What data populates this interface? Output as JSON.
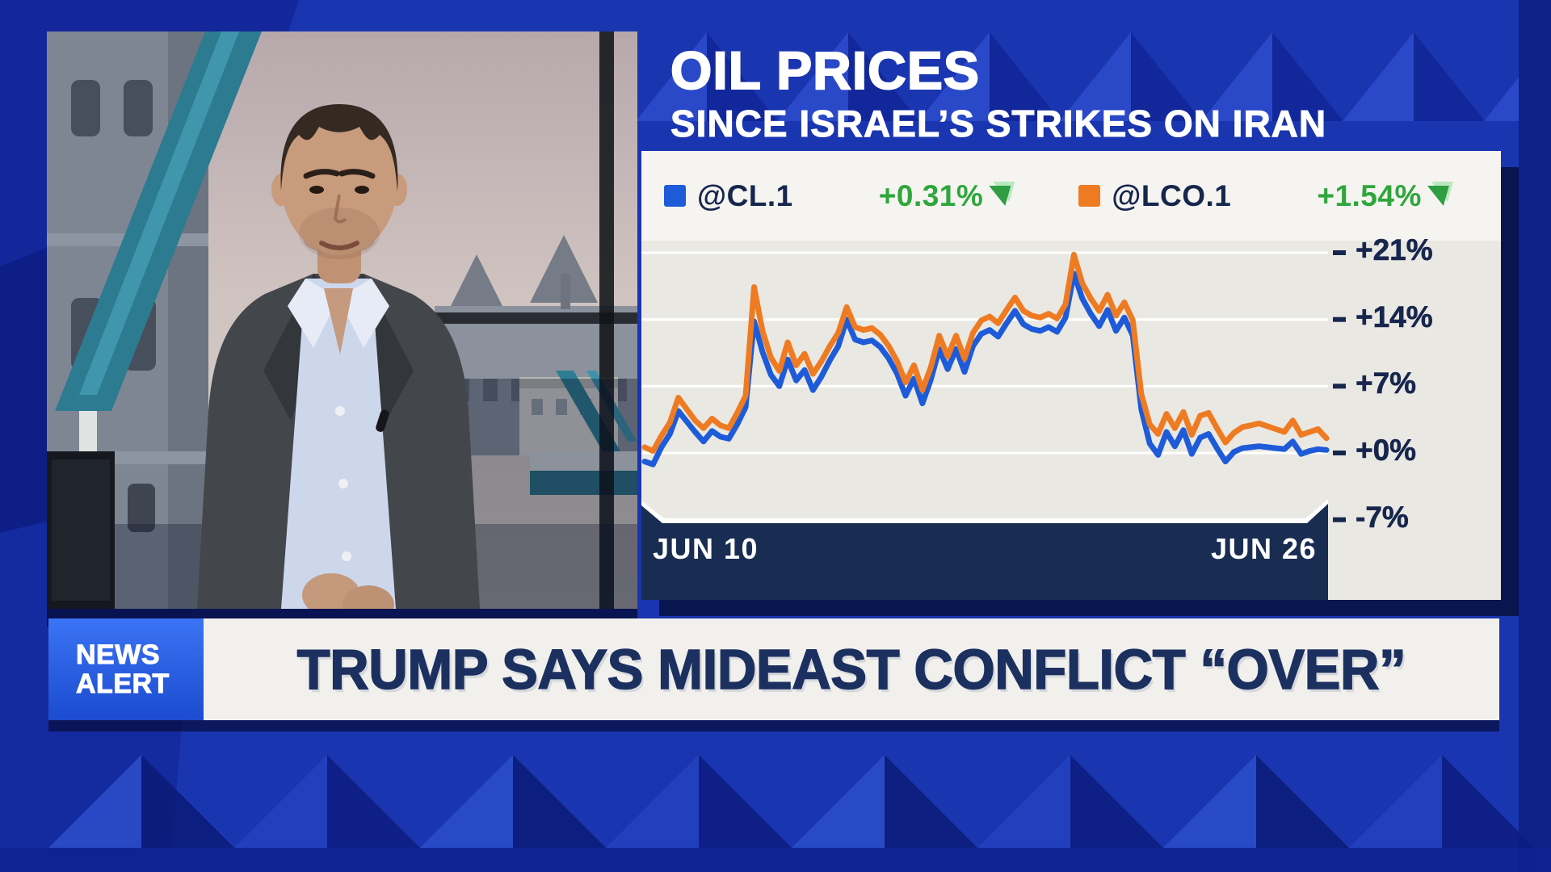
{
  "colors": {
    "navy": "#17264d",
    "band_navy": "#192c52",
    "green": "#2fa63c",
    "green_dark": "#2f9e42",
    "green_light": "#b9e8c2",
    "headline_navy": "#1c3060",
    "alert_blue_top": "#3a74f4",
    "alert_blue_bottom": "#1c4bcf",
    "line_blue": "#1d5bd8",
    "line_orange": "#ee7b22"
  },
  "chart_panel": {
    "title": "OIL PRICES",
    "subtitle": "SINCE ISRAEL’S STRIKES ON IRAN"
  },
  "banner": {
    "badge_line1": "NEWS",
    "badge_line2": "ALERT",
    "headline": "TRUMP SAYS MIDEAST CONFLICT “OVER”"
  },
  "chart_data": {
    "type": "line",
    "title": "OIL PRICES",
    "subtitle": "SINCE ISRAEL’S STRIKES ON IRAN",
    "legend_position": "top",
    "grid": "horizontal white gridlines on light gray",
    "x_axis": {
      "start_label": "JUN 10",
      "end_label": "JUN 26"
    },
    "ylim": [
      -7,
      21
    ],
    "y_ticks": [
      {
        "label": "+21%",
        "value": 21
      },
      {
        "label": "+14%",
        "value": 14
      },
      {
        "label": "+7%",
        "value": 7
      },
      {
        "label": "+0%",
        "value": 0
      },
      {
        "label": "-7%",
        "value": -7
      }
    ],
    "series": [
      {
        "name": "@CL.1",
        "change_label": "+0.31%",
        "color": "#1d5bd8",
        "values": [
          -0.9,
          -1.2,
          0.6,
          2.0,
          4.4,
          3.3,
          2.2,
          1.2,
          2.3,
          1.7,
          1.5,
          3.0,
          4.8,
          13.8,
          10.6,
          8.2,
          7.0,
          9.8,
          7.6,
          8.7,
          6.6,
          8.0,
          9.7,
          11.2,
          14.0,
          11.9,
          11.6,
          11.8,
          11.1,
          9.9,
          8.3,
          6.0,
          7.8,
          5.2,
          7.7,
          10.9,
          8.8,
          10.9,
          8.5,
          11.2,
          12.5,
          12.9,
          12.2,
          13.6,
          14.9,
          13.5,
          13.0,
          12.8,
          13.2,
          12.7,
          14.2,
          18.8,
          16.2,
          14.6,
          13.3,
          15.0,
          12.8,
          14.2,
          12.3,
          4.6,
          1.0,
          -0.2,
          2.2,
          0.7,
          2.4,
          -0.1,
          1.6,
          2.0,
          0.5,
          -0.9,
          0.1,
          0.5,
          0.6,
          0.7,
          0.6,
          0.5,
          0.4,
          1.2,
          -0.1,
          0.2,
          0.4,
          0.31
        ]
      },
      {
        "name": "@LCO.1",
        "change_label": "+1.54%",
        "color": "#ee7b22",
        "values": [
          0.6,
          0.2,
          1.8,
          3.2,
          5.8,
          4.6,
          3.4,
          2.6,
          3.6,
          2.9,
          2.6,
          4.2,
          6.0,
          17.4,
          12.8,
          10.0,
          8.6,
          11.6,
          9.2,
          10.4,
          8.3,
          9.6,
          11.2,
          12.6,
          15.3,
          13.2,
          12.9,
          13.1,
          12.4,
          11.2,
          9.6,
          7.4,
          9.2,
          6.6,
          9.0,
          12.3,
          10.1,
          12.3,
          9.9,
          12.6,
          13.9,
          14.3,
          13.6,
          15.0,
          16.3,
          14.9,
          14.4,
          14.2,
          14.6,
          14.1,
          15.6,
          20.8,
          17.8,
          16.2,
          14.9,
          16.6,
          14.4,
          15.8,
          13.9,
          6.2,
          3.0,
          2.0,
          4.1,
          2.6,
          4.3,
          1.9,
          3.9,
          4.2,
          2.6,
          1.1,
          2.1,
          2.7,
          2.9,
          3.1,
          2.8,
          2.5,
          2.2,
          3.4,
          1.9,
          2.2,
          2.5,
          1.54
        ]
      }
    ]
  }
}
